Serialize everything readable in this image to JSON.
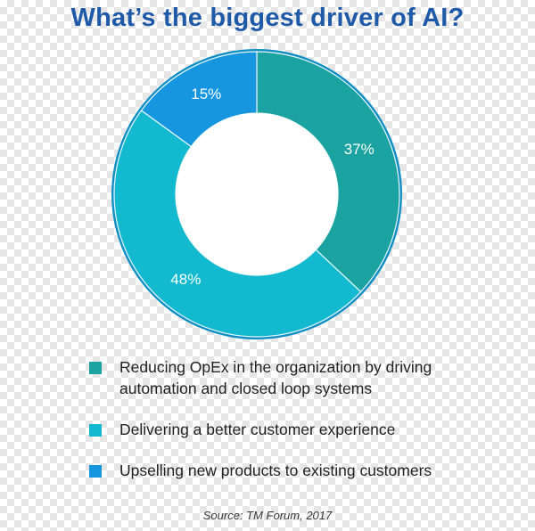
{
  "chart_data": {
    "type": "pie",
    "title": "What’s the biggest driver of AI?",
    "donut": true,
    "slices": [
      {
        "label": "Reducing OpEx in the organization by driving automation and closed loop systems",
        "value": 37,
        "display": "37%",
        "color": "#1aa3a0"
      },
      {
        "label": "Delivering a better customer experience",
        "value": 48,
        "display": "48%",
        "color": "#12b9cf"
      },
      {
        "label": "Upselling new products to existing customers",
        "value": 15,
        "display": "15%",
        "color": "#1596de"
      }
    ],
    "legend_position": "bottom",
    "source": "Source: TM Forum, 2017"
  },
  "colors": {
    "title": "#1f5aa8",
    "ring_border": "#0f8fc4",
    "slice_divider": "#e8f6fa"
  }
}
